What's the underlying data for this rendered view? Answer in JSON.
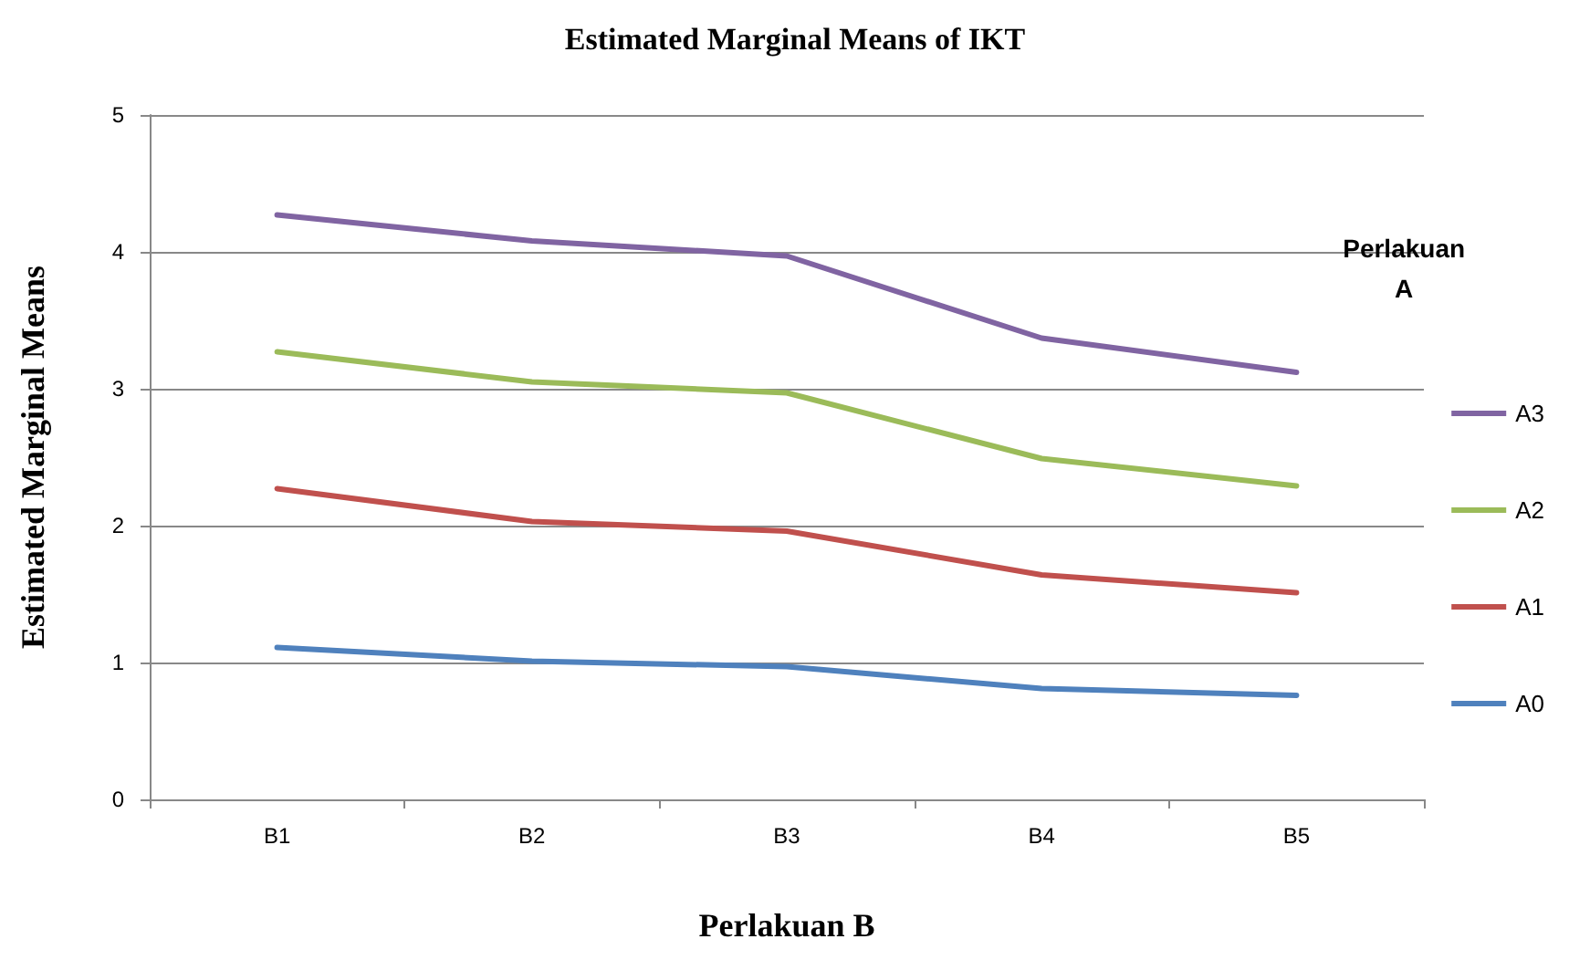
{
  "chart_data": {
    "type": "line",
    "title": "Estimated Marginal Means of IKT",
    "xlabel": "Perlakuan B",
    "ylabel": "Estimated Marginal Means",
    "legend_title": "Perlakuan A",
    "categories": [
      "B1",
      "B2",
      "B3",
      "B4",
      "B5"
    ],
    "series": [
      {
        "name": "A3",
        "color": "#8064a2",
        "values": [
          4.27,
          4.08,
          3.97,
          3.37,
          3.12
        ]
      },
      {
        "name": "A2",
        "color": "#9bbb59",
        "values": [
          3.27,
          3.05,
          2.97,
          2.49,
          2.29
        ]
      },
      {
        "name": "A1",
        "color": "#c0504d",
        "values": [
          2.27,
          2.03,
          1.96,
          1.64,
          1.51
        ]
      },
      {
        "name": "A0",
        "color": "#4f81bd",
        "values": [
          1.11,
          1.01,
          0.97,
          0.81,
          0.76
        ]
      }
    ],
    "ylim": [
      0,
      5
    ],
    "yticks": [
      0,
      1,
      2,
      3,
      4,
      5
    ],
    "grid": "y",
    "legend": "right",
    "marker": "none",
    "line_style": "solid"
  }
}
